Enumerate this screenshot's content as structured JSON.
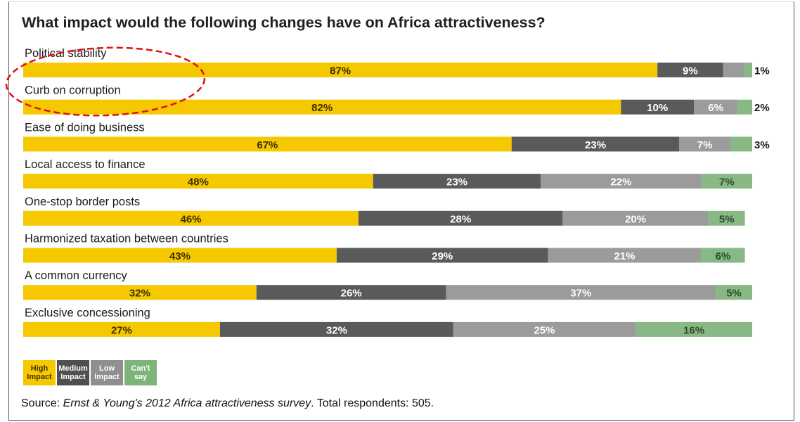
{
  "chart_data": {
    "type": "bar",
    "orientation": "horizontal-stacked",
    "title": "What impact would the following changes have on Africa attractiveness?",
    "categories": [
      "Political stability",
      "Curb on corruption",
      "Ease of doing business",
      "Local access to finance",
      "One-stop border posts",
      "Harmonized taxation between countries",
      "A common currency",
      "Exclusive concessioning"
    ],
    "series": [
      {
        "name": "High impact",
        "color": "#f5c800",
        "values": [
          87,
          82,
          67,
          48,
          46,
          43,
          32,
          27
        ]
      },
      {
        "name": "Medium impact",
        "color": "#5a5a5a",
        "values": [
          9,
          10,
          23,
          23,
          28,
          29,
          26,
          32
        ]
      },
      {
        "name": "Low impact",
        "color": "#9b9b9b",
        "values": [
          3,
          6,
          7,
          22,
          20,
          21,
          37,
          25
        ]
      },
      {
        "name": "Can't say",
        "color": "#88b884",
        "values": [
          1,
          2,
          3,
          7,
          5,
          6,
          5,
          16
        ]
      }
    ],
    "value_suffix": "%",
    "xlim": [
      0,
      100
    ],
    "legend_position": "bottom-left",
    "annotation": "red dashed ellipse around Political stability and Curb on corruption"
  },
  "legend": [
    {
      "label": "High\nImpact",
      "bg": "#f5c800",
      "fg": "#3d3300"
    },
    {
      "label": "Medium\nImpact",
      "bg": "#4f4f4f",
      "fg": "#ffffff"
    },
    {
      "label": "Low\nImpact",
      "bg": "#8f8f8f",
      "fg": "#ffffff"
    },
    {
      "label": "Can't\nsay",
      "bg": "#7eb37a",
      "fg": "#ffffff"
    }
  ],
  "source": {
    "prefix": "Source: ",
    "italic": "Ernst & Young's 2012 Africa attractiveness survey",
    "suffix": ". Total respondents: 505."
  }
}
